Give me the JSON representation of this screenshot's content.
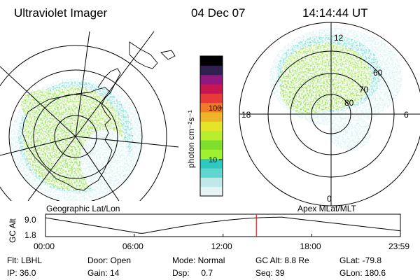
{
  "header": {
    "instrument": "Ultraviolet Imager",
    "date": "04 Dec 07",
    "time": "14:14:44 UT"
  },
  "left_map": {
    "caption": "Geographic Lat/Lon"
  },
  "right_map": {
    "caption": "Apex  MLat/MLT",
    "mlt_labels": {
      "top": "12",
      "left": "18",
      "right": "6",
      "bottom": "0"
    },
    "mlat_labels": [
      "60",
      "70",
      "80"
    ]
  },
  "colorbar": {
    "unit_label": "photon cm⁻²s⁻¹",
    "ticks": [
      {
        "label": "100",
        "value": 100
      },
      {
        "label": "10",
        "value": 10
      }
    ],
    "colors": [
      "#e6f4f4",
      "#bfe8e8",
      "#5fd6d0",
      "#2ec8c0",
      "#9ef030",
      "#7ee02c",
      "#b8ee2e",
      "#e6e428",
      "#f0b428",
      "#f07c28",
      "#e83a3a",
      "#c81450",
      "#901880",
      "#302050",
      "#000000"
    ]
  },
  "gc_alt_strip": {
    "ylabel": "GC Alt",
    "y_ticks": [
      "9.0",
      "1.8"
    ],
    "x_ticks": [
      "00:00",
      "06:00",
      "12:00",
      "18:00",
      "23:59"
    ],
    "current_marker_time_hours": 14.25
  },
  "status": {
    "row1": [
      {
        "key": "Flt: LBHL"
      },
      {
        "key": "Door: Open"
      },
      {
        "key": "Mode: Normal"
      },
      {
        "key": "GC Alt: 8.8 Re"
      },
      {
        "key": "GLat: -79.8"
      }
    ],
    "row2": [
      {
        "key": "IP: 36.0"
      },
      {
        "key": "Gain: 14"
      },
      {
        "key": "Dsp:     0.7"
      },
      {
        "key": "Seq: 39"
      },
      {
        "key": "GLon: 180.6"
      }
    ]
  },
  "colors": {
    "marker": "#e02020",
    "aurora_core": "#8ee030",
    "aurora_mid": "#5fd6d0",
    "aurora_edge": "#cfeeee"
  }
}
